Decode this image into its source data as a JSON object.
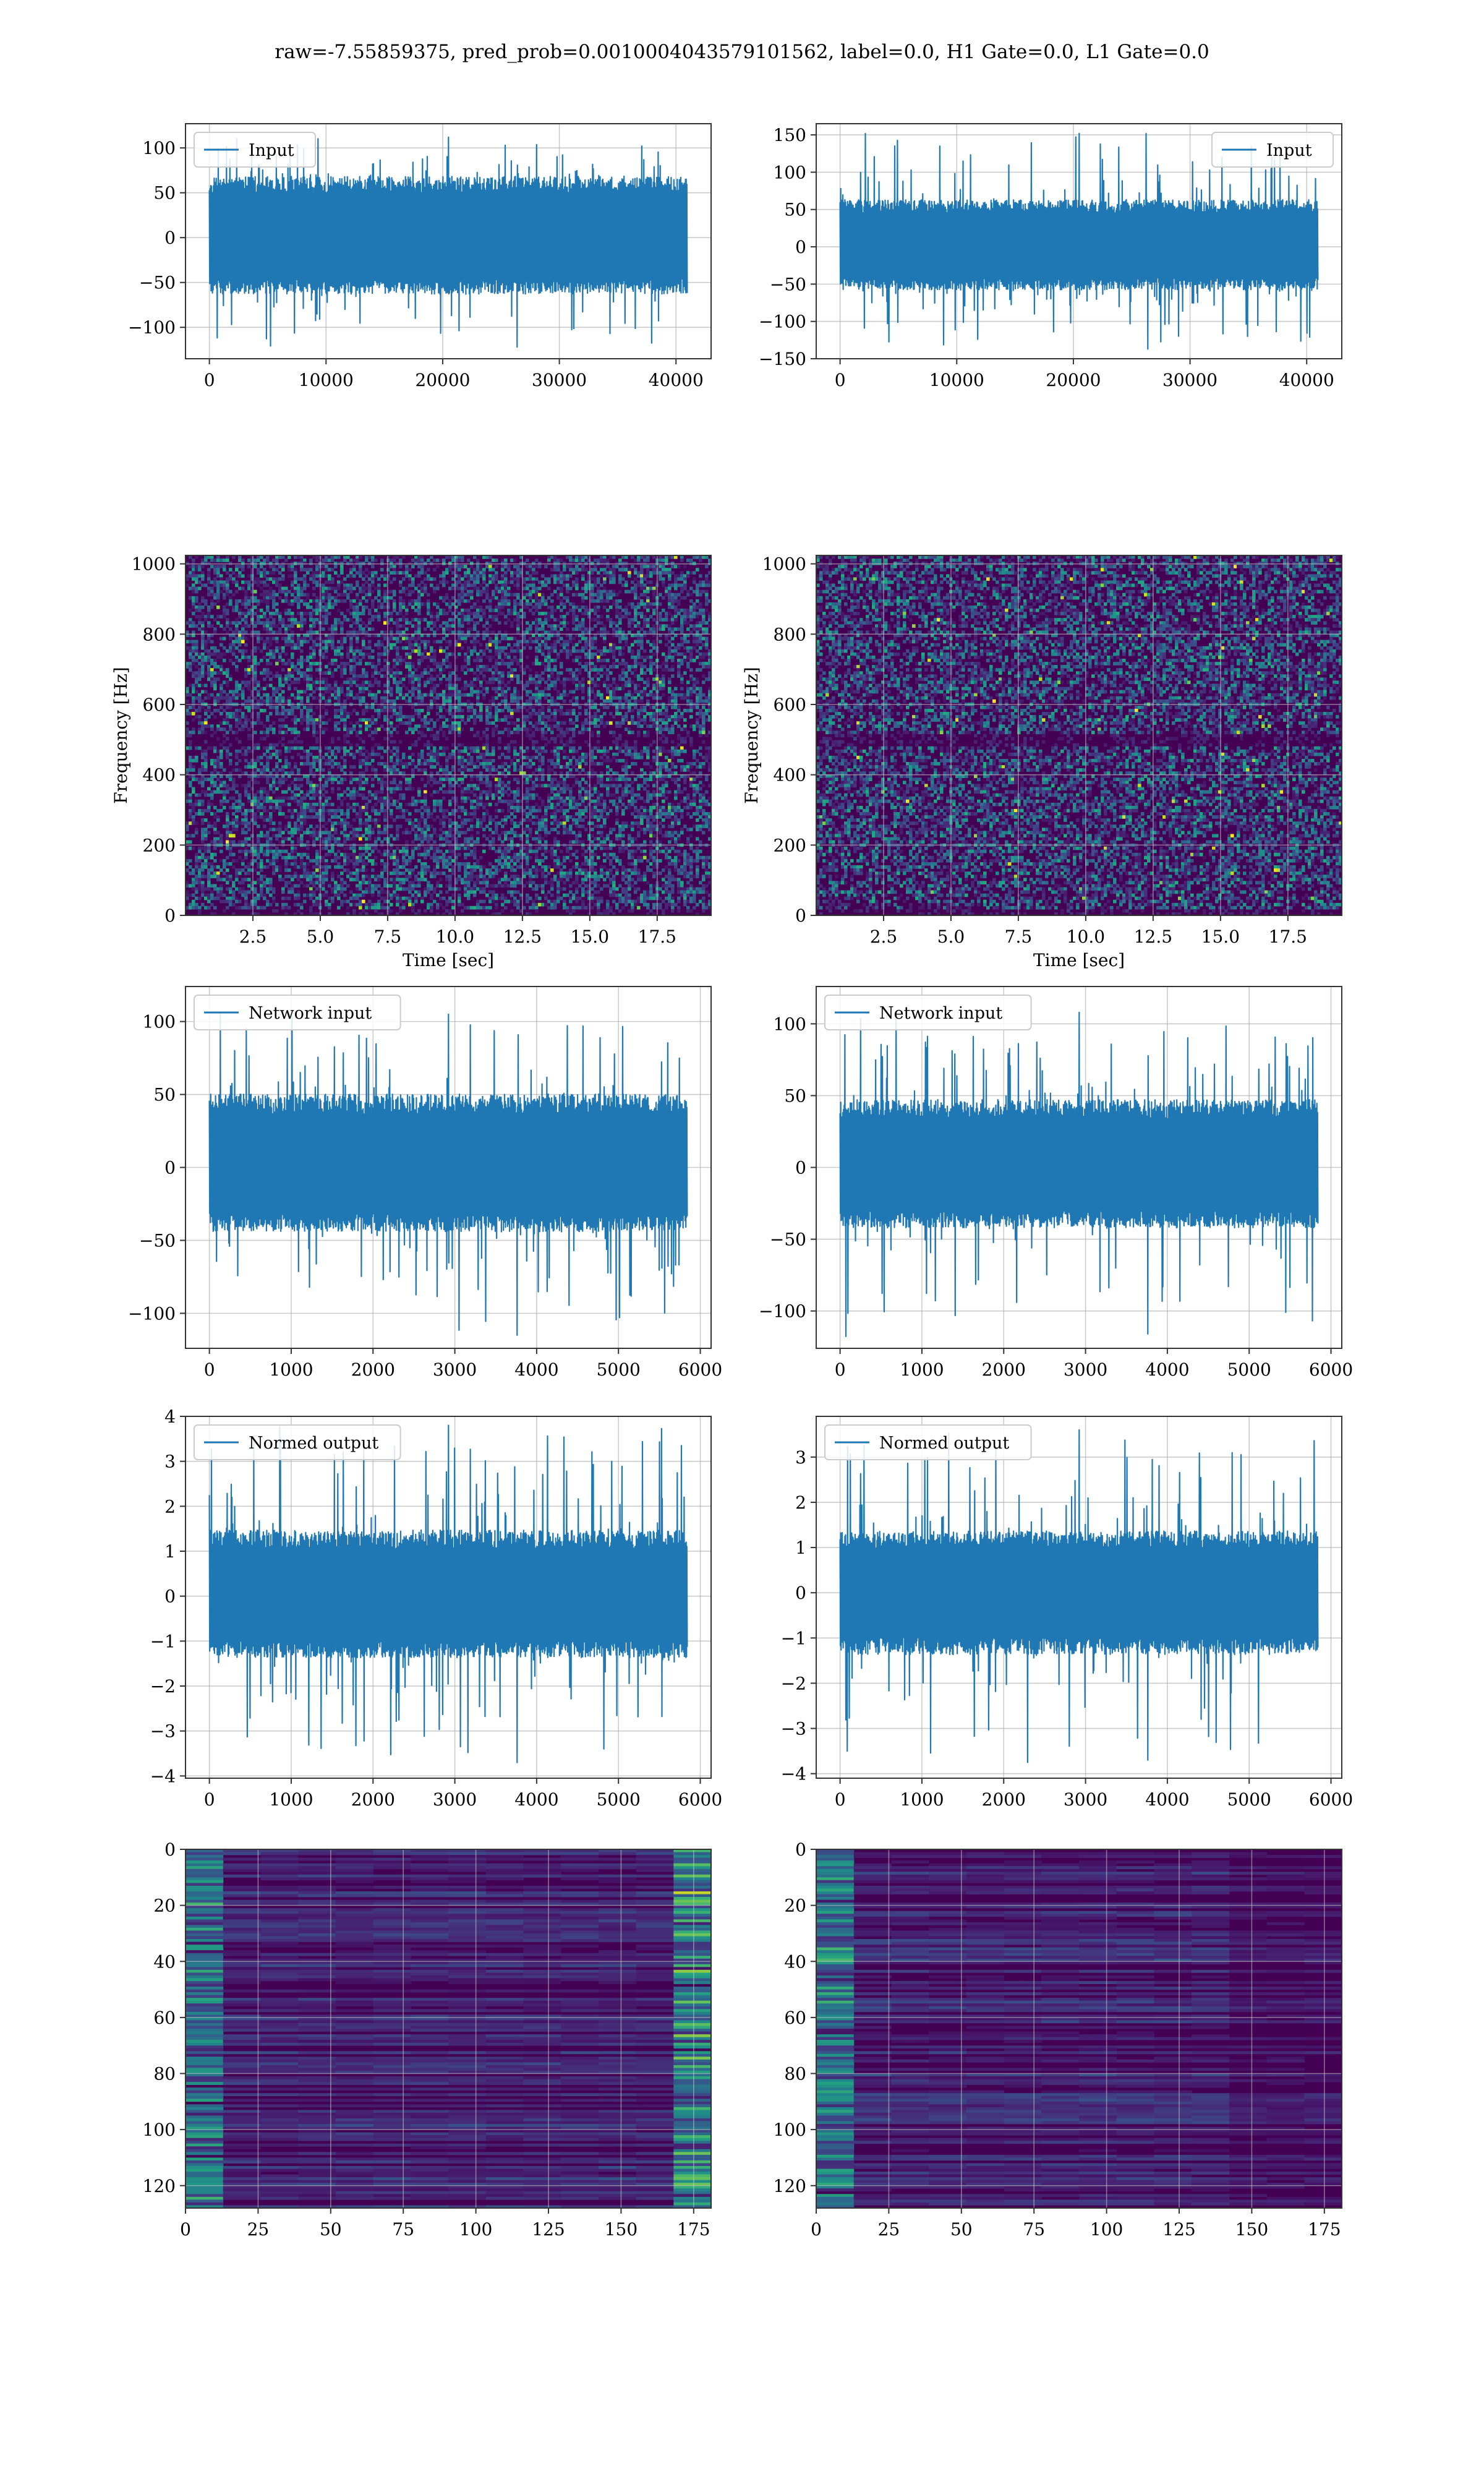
{
  "figure_title": "raw=-7.55859375, pred_prob=0.0010004043579101562, label=0.0, H1 Gate=0.0, L1 Gate=0.0",
  "colors": {
    "line": "#1f77b4",
    "grid": "#b0b0b0",
    "viridis_dark": "#440154"
  },
  "chart_data": [
    {
      "id": "input-h1",
      "type": "line",
      "title": "",
      "xlabel": "",
      "ylabel": "",
      "legend": "top-left",
      "series": [
        {
          "name": "Input",
          "x_range": [
            0,
            40960
          ],
          "band_low": -60,
          "band_high": 65,
          "peak_max": 112,
          "peak_min": -122
        }
      ],
      "xlim": [
        -2048,
        43008
      ],
      "ylim": [
        -135,
        127
      ],
      "xticks": [
        0,
        10000,
        20000,
        30000,
        40000
      ],
      "yticks": [
        -100,
        -50,
        0,
        50,
        100
      ],
      "xtick_labels": [
        "0",
        "10000",
        "20000",
        "30000",
        "40000"
      ],
      "ytick_labels": [
        "−100",
        "−50",
        "0",
        "50",
        "100"
      ],
      "grid": true
    },
    {
      "id": "input-l1",
      "type": "line",
      "title": "",
      "xlabel": "",
      "ylabel": "",
      "legend": "top-right",
      "series": [
        {
          "name": "Input",
          "x_range": [
            0,
            40960
          ],
          "band_low": -55,
          "band_high": 60,
          "peak_max": 152,
          "peak_min": -137
        }
      ],
      "xlim": [
        -2048,
        43008
      ],
      "ylim": [
        -150,
        165
      ],
      "xticks": [
        0,
        10000,
        20000,
        30000,
        40000
      ],
      "yticks": [
        -150,
        -100,
        -50,
        0,
        50,
        100,
        150
      ],
      "xtick_labels": [
        "0",
        "10000",
        "20000",
        "30000",
        "40000"
      ],
      "ytick_labels": [
        "−150",
        "−100",
        "−50",
        "0",
        "50",
        "100",
        "150"
      ],
      "grid": true
    },
    {
      "id": "spectrogram-h1",
      "type": "heatmap",
      "title": "",
      "xlabel": "Time [sec]",
      "ylabel": "Frequency [Hz]",
      "xlim": [
        0,
        19.5
      ],
      "ylim": [
        0,
        1024
      ],
      "xticks": [
        2.5,
        5.0,
        7.5,
        10.0,
        12.5,
        15.0,
        17.5
      ],
      "yticks": [
        0,
        200,
        400,
        600,
        800,
        1000
      ],
      "xtick_labels": [
        "2.5",
        "5.0",
        "7.5",
        "10.0",
        "12.5",
        "15.0",
        "17.5"
      ],
      "ytick_labels": [
        "0",
        "200",
        "400",
        "600",
        "800",
        "1000"
      ],
      "colormap": "viridis",
      "grid": true
    },
    {
      "id": "spectrogram-l1",
      "type": "heatmap",
      "title": "",
      "xlabel": "Time [sec]",
      "ylabel": "Frequency [Hz]",
      "xlim": [
        0,
        19.5
      ],
      "ylim": [
        0,
        1024
      ],
      "xticks": [
        2.5,
        5.0,
        7.5,
        10.0,
        12.5,
        15.0,
        17.5
      ],
      "yticks": [
        0,
        200,
        400,
        600,
        800,
        1000
      ],
      "xtick_labels": [
        "2.5",
        "5.0",
        "7.5",
        "10.0",
        "12.5",
        "15.0",
        "17.5"
      ],
      "ytick_labels": [
        "0",
        "200",
        "400",
        "600",
        "800",
        "1000"
      ],
      "colormap": "viridis",
      "grid": true
    },
    {
      "id": "network-input-h1",
      "type": "line",
      "title": "",
      "xlabel": "",
      "ylabel": "",
      "legend": "top-left",
      "series": [
        {
          "name": "Network input",
          "x_range": [
            0,
            5840
          ],
          "band_low": -42,
          "band_high": 48,
          "peak_max": 105,
          "peak_min": -115
        }
      ],
      "xlim": [
        -292,
        6132
      ],
      "ylim": [
        -124,
        124
      ],
      "xticks": [
        0,
        1000,
        2000,
        3000,
        4000,
        5000,
        6000
      ],
      "yticks": [
        -100,
        -50,
        0,
        50,
        100
      ],
      "xtick_labels": [
        "0",
        "1000",
        "2000",
        "3000",
        "4000",
        "5000",
        "6000"
      ],
      "ytick_labels": [
        "−100",
        "−50",
        "0",
        "50",
        "100"
      ],
      "grid": true
    },
    {
      "id": "network-input-l1",
      "type": "line",
      "title": "",
      "xlabel": "",
      "ylabel": "",
      "legend": "top-left",
      "series": [
        {
          "name": "Network input",
          "x_range": [
            0,
            5840
          ],
          "band_low": -40,
          "band_high": 45,
          "peak_max": 108,
          "peak_min": -116
        }
      ],
      "xlim": [
        -292,
        6132
      ],
      "ylim": [
        -126,
        126
      ],
      "xticks": [
        0,
        1000,
        2000,
        3000,
        4000,
        5000,
        6000
      ],
      "yticks": [
        -100,
        -50,
        0,
        50,
        100
      ],
      "xtick_labels": [
        "0",
        "1000",
        "2000",
        "3000",
        "4000",
        "5000",
        "6000"
      ],
      "ytick_labels": [
        "−100",
        "−50",
        "0",
        "50",
        "100"
      ],
      "grid": true
    },
    {
      "id": "normed-output-h1",
      "type": "line",
      "title": "",
      "xlabel": "",
      "ylabel": "",
      "legend": "top-left",
      "series": [
        {
          "name": "Normed output",
          "x_range": [
            0,
            5840
          ],
          "band_low": -1.3,
          "band_high": 1.4,
          "peak_max": 3.8,
          "peak_min": -3.7
        }
      ],
      "xlim": [
        -292,
        6132
      ],
      "ylim": [
        -4.05,
        4.0
      ],
      "xticks": [
        0,
        1000,
        2000,
        3000,
        4000,
        5000,
        6000
      ],
      "yticks": [
        -4,
        -3,
        -2,
        -1,
        0,
        1,
        2,
        3,
        4
      ],
      "xtick_labels": [
        "0",
        "1000",
        "2000",
        "3000",
        "4000",
        "5000",
        "6000"
      ],
      "ytick_labels": [
        "−4",
        "−3",
        "−2",
        "−1",
        "0",
        "1",
        "2",
        "3",
        "4"
      ],
      "grid": true
    },
    {
      "id": "normed-output-l1",
      "type": "line",
      "title": "",
      "xlabel": "",
      "ylabel": "",
      "legend": "top-left",
      "series": [
        {
          "name": "Normed output",
          "x_range": [
            0,
            5840
          ],
          "band_low": -1.3,
          "band_high": 1.3,
          "peak_max": 3.6,
          "peak_min": -3.7
        }
      ],
      "xlim": [
        -292,
        6132
      ],
      "ylim": [
        -4.1,
        3.9
      ],
      "xticks": [
        0,
        1000,
        2000,
        3000,
        4000,
        5000,
        6000
      ],
      "yticks": [
        -4,
        -3,
        -2,
        -1,
        0,
        1,
        2,
        3
      ],
      "xtick_labels": [
        "0",
        "1000",
        "2000",
        "3000",
        "4000",
        "5000",
        "6000"
      ],
      "ytick_labels": [
        "−4",
        "−3",
        "−2",
        "−1",
        "0",
        "1",
        "2",
        "3"
      ],
      "grid": true
    },
    {
      "id": "feature-map-h1",
      "type": "heatmap",
      "title": "",
      "xlabel": "",
      "ylabel": "",
      "xlim": [
        0,
        181
      ],
      "ylim": [
        128,
        0
      ],
      "xticks": [
        0,
        25,
        50,
        75,
        100,
        125,
        150,
        175
      ],
      "yticks": [
        0,
        20,
        40,
        60,
        80,
        100,
        120
      ],
      "xtick_labels": [
        "0",
        "25",
        "50",
        "75",
        "100",
        "125",
        "150",
        "175"
      ],
      "ytick_labels": [
        "0",
        "20",
        "40",
        "60",
        "80",
        "100",
        "120"
      ],
      "colormap": "viridis",
      "grid": true
    },
    {
      "id": "feature-map-l1",
      "type": "heatmap",
      "title": "",
      "xlabel": "",
      "ylabel": "",
      "xlim": [
        0,
        181
      ],
      "ylim": [
        128,
        0
      ],
      "xticks": [
        0,
        25,
        50,
        75,
        100,
        125,
        150,
        175
      ],
      "yticks": [
        0,
        20,
        40,
        60,
        80,
        100,
        120
      ],
      "xtick_labels": [
        "0",
        "25",
        "50",
        "75",
        "100",
        "125",
        "150",
        "175"
      ],
      "ytick_labels": [
        "0",
        "20",
        "40",
        "60",
        "80",
        "100",
        "120"
      ],
      "colormap": "viridis",
      "grid": true
    }
  ]
}
